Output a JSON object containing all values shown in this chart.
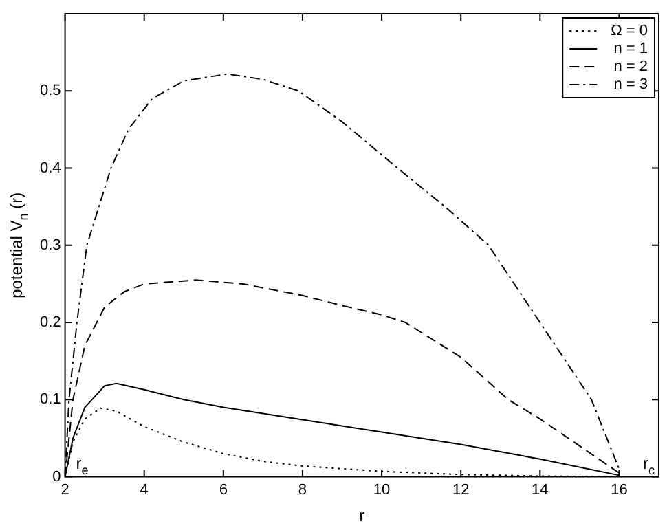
{
  "chart_data": {
    "type": "line",
    "xlabel": "r",
    "ylabel": "potential V$_{n}$ (r)",
    "xlim": [
      2,
      17
    ],
    "xticks": [
      2,
      4,
      6,
      8,
      10,
      12,
      14,
      16
    ],
    "ylim": [
      0,
      0.6
    ],
    "yticks": [
      0,
      0.1,
      0.2,
      0.3,
      0.4,
      0.5
    ],
    "grid": false,
    "legend": "top right",
    "marker": "none",
    "annotations": [
      "r$_{e}$",
      "r$_{c}$"
    ],
    "series": [
      {
        "name": "Ω = 0",
        "color": "#000000",
        "line_style": "dotted",
        "x": [
          2,
          2.2,
          2.5,
          2.9,
          3.3,
          4,
          5,
          6,
          7,
          8,
          10,
          12,
          14,
          16
        ],
        "values": [
          0,
          0.045,
          0.075,
          0.089,
          0.085,
          0.065,
          0.045,
          0.03,
          0.02,
          0.014,
          0.007,
          0.003,
          0.001,
          0
        ]
      },
      {
        "name": "n = 1",
        "color": "#000000",
        "line_style": "solid",
        "x": [
          2,
          2.2,
          2.5,
          3,
          3.3,
          4,
          5,
          6,
          8,
          10,
          12,
          14,
          16
        ],
        "values": [
          0,
          0.05,
          0.09,
          0.118,
          0.121,
          0.113,
          0.1,
          0.09,
          0.074,
          0.058,
          0.042,
          0.023,
          0.002
        ]
      },
      {
        "name": "n = 2",
        "color": "#000000",
        "line_style": "dashed",
        "x": [
          2,
          2.2,
          2.5,
          3,
          3.5,
          4,
          5.3,
          6.5,
          8,
          9,
          10,
          10.6,
          12,
          13.2,
          14,
          15,
          16
        ],
        "values": [
          0,
          0.1,
          0.17,
          0.22,
          0.24,
          0.25,
          0.255,
          0.25,
          0.235,
          0.222,
          0.21,
          0.2,
          0.155,
          0.1,
          0.075,
          0.04,
          0.005
        ]
      },
      {
        "name": "n = 3",
        "color": "#000000",
        "line_style": "dashdot",
        "x": [
          2,
          2.1,
          2.3,
          2.55,
          3.16,
          3.6,
          4.2,
          5,
          6.1,
          7,
          7.9,
          9,
          10.4,
          11.6,
          12.7,
          14,
          15.3,
          16
        ],
        "values": [
          0,
          0.1,
          0.2,
          0.3,
          0.4,
          0.45,
          0.49,
          0.513,
          0.522,
          0.515,
          0.5,
          0.46,
          0.4,
          0.35,
          0.3,
          0.2,
          0.1,
          0.01
        ]
      }
    ]
  }
}
